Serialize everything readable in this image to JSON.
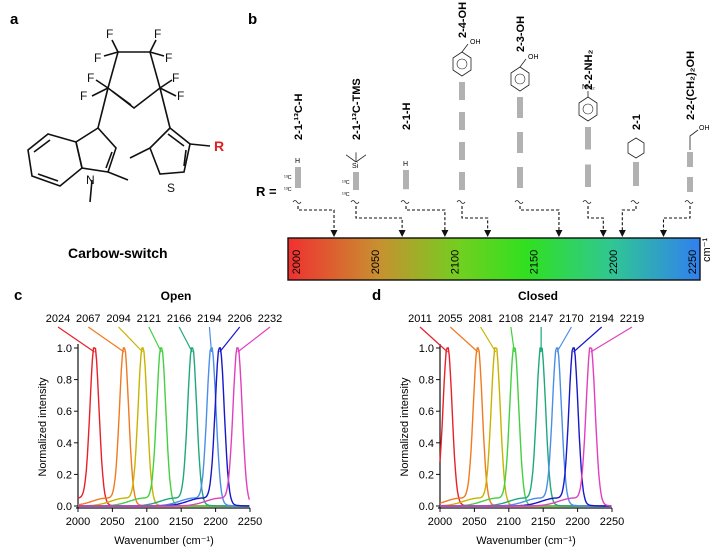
{
  "panels": {
    "a": {
      "letter": "a",
      "caption": "Carbow-switch",
      "atoms": {
        "F": "F",
        "N": "N",
        "S": "S",
        "R": "R"
      }
    },
    "b": {
      "letter": "b",
      "r_label": "R =",
      "substituents": [
        {
          "label": "2-1-¹³C-H",
          "x": 2024
        },
        {
          "label": "2-1-¹³C-TMS",
          "x": 2067
        },
        {
          "label": "2-1-H",
          "x": 2094
        },
        {
          "label": "2-4-OH",
          "x": 2121
        },
        {
          "label": "2-3-OH",
          "x": 2166
        },
        {
          "label": "2-2-NH₂",
          "x": 2194
        },
        {
          "label": "2-1",
          "x": 2206
        },
        {
          "label": "2-2-(CH₂)₂OH",
          "x": 2232
        }
      ],
      "scale_ticks": [
        "2000",
        "2050",
        "2100",
        "2150",
        "2200",
        "2250"
      ],
      "unit": "cm⁻¹",
      "atoms": {
        "oh": "OH",
        "nh2": "NH₂",
        "si": "Si",
        "c13": "¹³C",
        "h": "H"
      }
    }
  },
  "chart_data": [
    {
      "type": "line",
      "panel_letter": "c",
      "title": "Open",
      "xlabel": "Wavenumber (cm⁻¹)",
      "ylabel": "Normalized intensity",
      "xlim": [
        2000,
        2250
      ],
      "ylim": [
        0,
        1.0
      ],
      "x_ticks": [
        "2000",
        "2050",
        "2100",
        "2150",
        "2200",
        "2250"
      ],
      "y_ticks": [
        "0.0",
        "0.2",
        "0.4",
        "0.6",
        "0.8",
        "1.0"
      ],
      "series": [
        {
          "name": "2024",
          "peak": 2024,
          "color": "#e8202a"
        },
        {
          "name": "2067",
          "peak": 2067,
          "color": "#f07a20"
        },
        {
          "name": "2094",
          "peak": 2094,
          "color": "#c8b400"
        },
        {
          "name": "2121",
          "peak": 2121,
          "color": "#44d040"
        },
        {
          "name": "2166",
          "peak": 2166,
          "color": "#1fa87a"
        },
        {
          "name": "2194",
          "peak": 2194,
          "color": "#4a8ee8"
        },
        {
          "name": "2206",
          "peak": 2206,
          "color": "#1818c8"
        },
        {
          "name": "2232",
          "peak": 2232,
          "color": "#e040c0"
        }
      ]
    },
    {
      "type": "line",
      "panel_letter": "d",
      "title": "Closed",
      "xlabel": "Wavenumber (cm⁻¹)",
      "ylabel": "Normalized intensity",
      "xlim": [
        2000,
        2250
      ],
      "ylim": [
        0,
        1.0
      ],
      "x_ticks": [
        "2000",
        "2050",
        "2100",
        "2150",
        "2200",
        "2250"
      ],
      "y_ticks": [
        "0.0",
        "0.2",
        "0.4",
        "0.6",
        "0.8",
        "1.0"
      ],
      "series": [
        {
          "name": "2011",
          "peak": 2011,
          "color": "#e8202a"
        },
        {
          "name": "2055",
          "peak": 2055,
          "color": "#f07a20"
        },
        {
          "name": "2081",
          "peak": 2081,
          "color": "#c8b400"
        },
        {
          "name": "2108",
          "peak": 2108,
          "color": "#44d040"
        },
        {
          "name": "2147",
          "peak": 2147,
          "color": "#1fa87a"
        },
        {
          "name": "2170",
          "peak": 2170,
          "color": "#4a8ee8"
        },
        {
          "name": "2194",
          "peak": 2194,
          "color": "#1818c8"
        },
        {
          "name": "2219",
          "peak": 2219,
          "color": "#e040c0"
        }
      ]
    }
  ]
}
